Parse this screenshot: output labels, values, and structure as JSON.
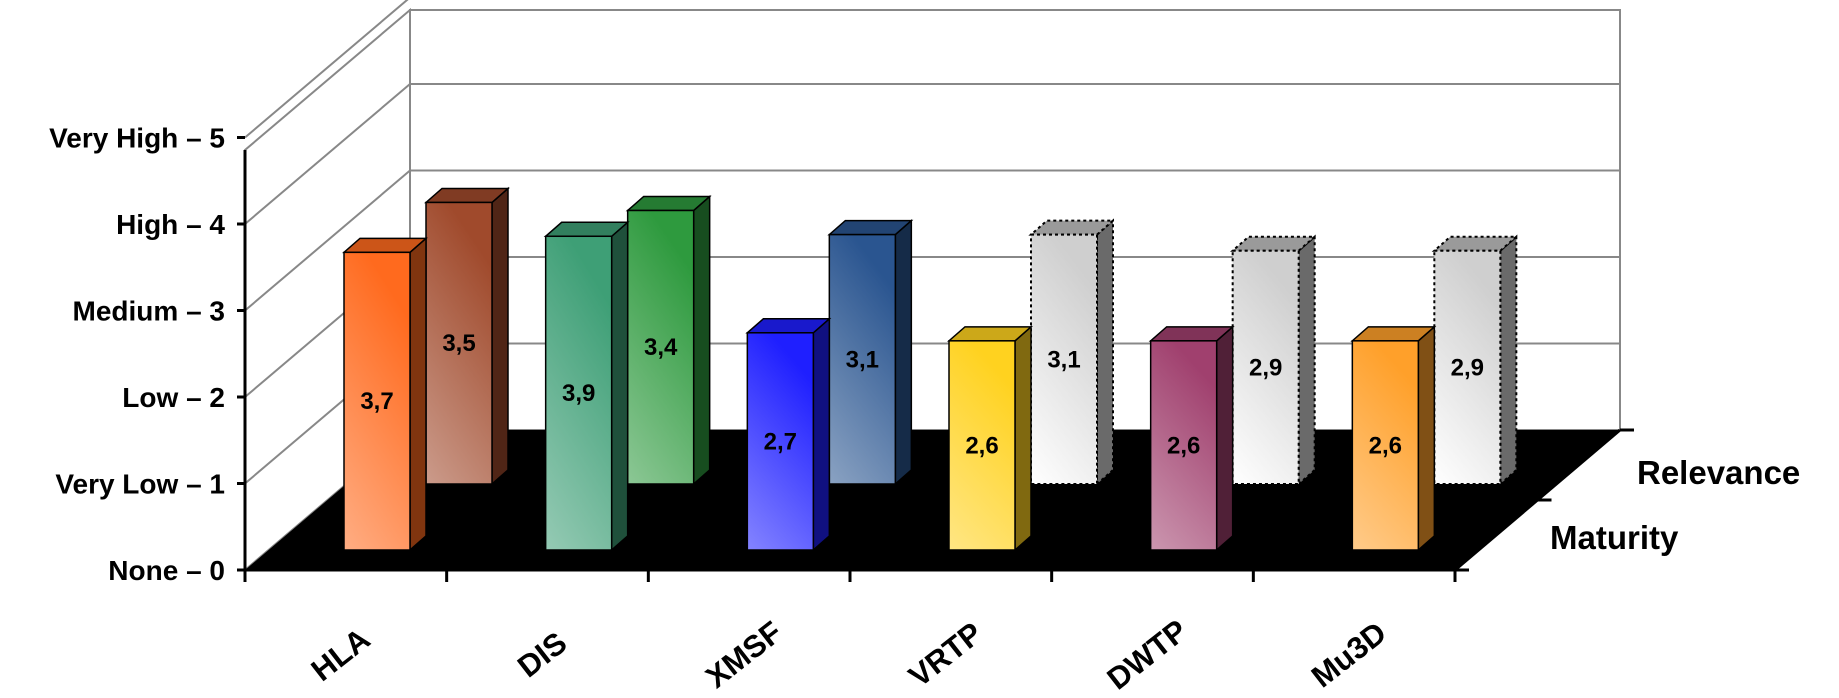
{
  "chart_data": {
    "type": "bar",
    "categories": [
      "HLA",
      "DIS",
      "XMSF",
      "VRTP",
      "DWTP",
      "Mu3D"
    ],
    "series": [
      {
        "name": "Maturity",
        "values": [
          3.7,
          3.9,
          2.7,
          2.6,
          2.6,
          2.6
        ],
        "labels": [
          "3,7",
          "3,9",
          "2,7",
          "2,6",
          "2,6",
          "2,6"
        ]
      },
      {
        "name": "Relevance",
        "values": [
          3.5,
          3.4,
          3.1,
          3.1,
          2.9,
          2.9
        ],
        "labels": [
          "3,5",
          "3,4",
          "3,1",
          "3,1",
          "2,9",
          "2,9"
        ]
      }
    ],
    "y_ticks": [
      "None – 0",
      "Very Low – 1",
      "Low – 2",
      "Medium – 3",
      "High – 4",
      "Very High – 5"
    ],
    "ylim": [
      0,
      5
    ],
    "grid": true,
    "three_d": true,
    "floor_color": "#000000",
    "colors": {
      "maturity": [
        "#FF6A1E",
        "#3E9F76",
        "#1F1FFF",
        "#FFD21F",
        "#A0406E",
        "#FFA02A"
      ],
      "relevance": [
        "#A04A2C",
        "#2E9A3E",
        "#2A5590",
        "#E4E4E4",
        "#E4E4E4",
        "#E4E4E4"
      ],
      "relevance_dashed": [
        false,
        false,
        false,
        true,
        true,
        true
      ]
    }
  }
}
